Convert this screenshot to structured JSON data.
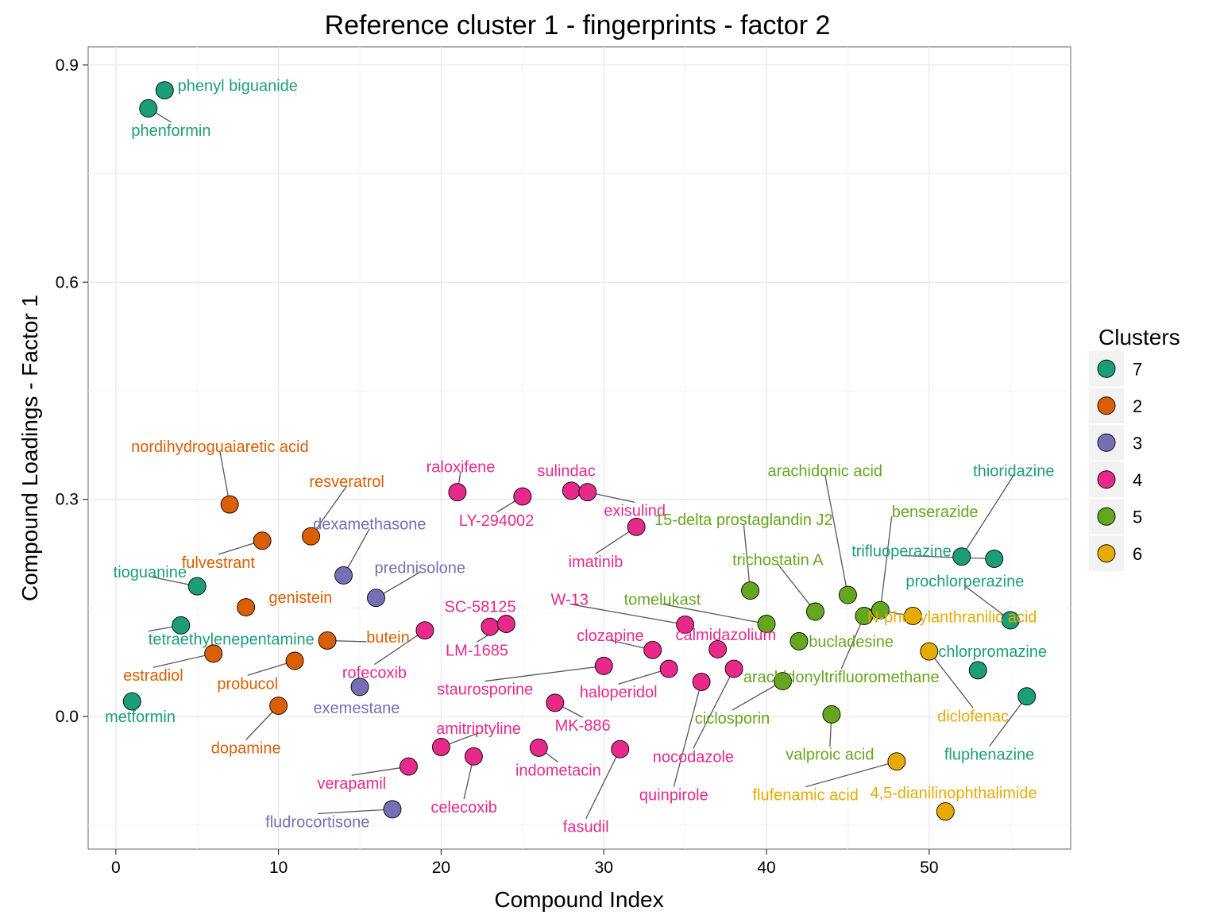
{
  "chart_data": {
    "type": "scatter",
    "title": "Reference cluster 1 - fingerprints - factor 2",
    "xlabel": "Compound Index",
    "ylabel": "Compound Loadings - Factor 1",
    "xlim": [
      -1.7,
      58.7
    ],
    "ylim": [
      -0.183,
      0.925
    ],
    "x_ticks": [
      0,
      10,
      20,
      30,
      40,
      50
    ],
    "y_ticks": [
      0.0,
      0.3,
      0.6,
      0.9
    ],
    "y_tick_labels": [
      "0.0",
      "0.3",
      "0.6",
      "0.9"
    ],
    "grid": true,
    "legend": {
      "title": "Clusters",
      "position": "right",
      "entries": [
        {
          "label": "7",
          "color": "#1b9e77"
        },
        {
          "label": "2",
          "color": "#d95f02"
        },
        {
          "label": "3",
          "color": "#7570b3"
        },
        {
          "label": "4",
          "color": "#e7298a"
        },
        {
          "label": "5",
          "color": "#66a61e"
        },
        {
          "label": "6",
          "color": "#e6ab02"
        }
      ]
    },
    "points": [
      {
        "x": 1,
        "y": 0.021,
        "label": "metformin",
        "cluster": "7",
        "lx": 1.5,
        "ly": 0.0,
        "la": "middle"
      },
      {
        "x": 2,
        "y": 0.84,
        "label": "phenformin",
        "cluster": "7",
        "lx": 3.4,
        "ly": 0.81,
        "la": "middle"
      },
      {
        "x": 3,
        "y": 0.865,
        "label": "phenyl biguanide",
        "cluster": "7",
        "lx": 3.8,
        "ly": 0.872,
        "la": "start"
      },
      {
        "x": 4,
        "y": 0.126,
        "label": "tetraethylenepentamine",
        "cluster": "7",
        "lx": 2.0,
        "ly": 0.107,
        "la": "start"
      },
      {
        "x": 5,
        "y": 0.18,
        "label": "tioguanine",
        "cluster": "7",
        "lx": 2.1,
        "ly": 0.2,
        "la": "middle"
      },
      {
        "x": 6,
        "y": 0.087,
        "label": "estradiol",
        "cluster": "2",
        "lx": 2.3,
        "ly": 0.057,
        "la": "middle"
      },
      {
        "x": 7,
        "y": 0.293,
        "label": "nordihydroguaiaretic acid",
        "cluster": "2",
        "lx": 6.4,
        "ly": 0.373,
        "la": "middle"
      },
      {
        "x": 8,
        "y": 0.151,
        "label": "genistein",
        "cluster": "2",
        "lx": 9.4,
        "ly": 0.165,
        "la": "start"
      },
      {
        "x": 9,
        "y": 0.243,
        "label": "fulvestrant",
        "cluster": "2",
        "lx": 6.3,
        "ly": 0.213,
        "la": "middle"
      },
      {
        "x": 10,
        "y": 0.015,
        "label": "dopamine",
        "cluster": "2",
        "lx": 8.0,
        "ly": -0.043,
        "la": "middle"
      },
      {
        "x": 11,
        "y": 0.077,
        "label": "probucol",
        "cluster": "2",
        "lx": 8.1,
        "ly": 0.046,
        "la": "middle"
      },
      {
        "x": 12,
        "y": 0.249,
        "label": "resveratrol",
        "cluster": "2",
        "lx": 14.2,
        "ly": 0.325,
        "la": "middle"
      },
      {
        "x": 13,
        "y": 0.105,
        "label": "butein",
        "cluster": "2",
        "lx": 15.4,
        "ly": 0.11,
        "la": "start"
      },
      {
        "x": 14,
        "y": 0.195,
        "label": "dexamethasone",
        "cluster": "3",
        "lx": 15.6,
        "ly": 0.266,
        "la": "middle"
      },
      {
        "x": 15,
        "y": 0.041,
        "label": "exemestane",
        "cluster": "3",
        "lx": 14.8,
        "ly": 0.012,
        "la": "middle"
      },
      {
        "x": 16,
        "y": 0.164,
        "label": "prednisolone",
        "cluster": "3",
        "lx": 18.7,
        "ly": 0.206,
        "la": "middle"
      },
      {
        "x": 17,
        "y": -0.128,
        "label": "fludrocortisone",
        "cluster": "3",
        "lx": 12.4,
        "ly": -0.145,
        "la": "middle"
      },
      {
        "x": 18,
        "y": -0.069,
        "label": "verapamil",
        "cluster": "4",
        "lx": 14.5,
        "ly": -0.092,
        "la": "middle"
      },
      {
        "x": 19,
        "y": 0.119,
        "label": "rofecoxib",
        "cluster": "4",
        "lx": 15.9,
        "ly": 0.061,
        "la": "middle"
      },
      {
        "x": 20,
        "y": -0.042,
        "label": "amitriptyline",
        "cluster": "4",
        "lx": 22.3,
        "ly": -0.016,
        "la": "middle"
      },
      {
        "x": 21,
        "y": 0.31,
        "label": "raloxifene",
        "cluster": "4",
        "lx": 21.2,
        "ly": 0.345,
        "la": "middle"
      },
      {
        "x": 22,
        "y": -0.055,
        "label": "celecoxib",
        "cluster": "4",
        "lx": 21.4,
        "ly": -0.125,
        "la": "middle"
      },
      {
        "x": 23,
        "y": 0.124,
        "label": "SC-58125",
        "cluster": "4",
        "lx": 22.4,
        "ly": 0.152,
        "la": "middle"
      },
      {
        "x": 24,
        "y": 0.128,
        "label": "LM-1685",
        "cluster": "4",
        "lx": 22.2,
        "ly": 0.092,
        "la": "middle"
      },
      {
        "x": 25,
        "y": 0.304,
        "label": "LY-294002",
        "cluster": "4",
        "lx": 23.4,
        "ly": 0.271,
        "la": "middle"
      },
      {
        "x": 26,
        "y": -0.043,
        "label": "indometacin",
        "cluster": "4",
        "lx": 27.2,
        "ly": -0.074,
        "la": "middle"
      },
      {
        "x": 27,
        "y": 0.019,
        "label": "MK-886",
        "cluster": "4",
        "lx": 28.7,
        "ly": -0.012,
        "la": "middle"
      },
      {
        "x": 28,
        "y": 0.312,
        "label": "sulindac",
        "cluster": "4",
        "lx": 27.7,
        "ly": 0.34,
        "la": "middle"
      },
      {
        "x": 29,
        "y": 0.31,
        "label": "exisulind",
        "cluster": "4",
        "lx": 31.9,
        "ly": 0.285,
        "la": "middle"
      },
      {
        "x": 30,
        "y": 0.07,
        "label": "staurosporine",
        "cluster": "4",
        "lx": 22.7,
        "ly": 0.038,
        "la": "middle"
      },
      {
        "x": 31,
        "y": -0.045,
        "label": "fasudil",
        "cluster": "4",
        "lx": 28.9,
        "ly": -0.152,
        "la": "middle"
      },
      {
        "x": 32,
        "y": 0.262,
        "label": "imatinib",
        "cluster": "4",
        "lx": 29.5,
        "ly": 0.214,
        "la": "middle"
      },
      {
        "x": 33,
        "y": 0.092,
        "label": "clozapine",
        "cluster": "4",
        "lx": 30.4,
        "ly": 0.112,
        "la": "middle"
      },
      {
        "x": 34,
        "y": 0.066,
        "label": "haloperidol",
        "cluster": "4",
        "lx": 30.9,
        "ly": 0.034,
        "la": "middle"
      },
      {
        "x": 35,
        "y": 0.127,
        "label": "W-13",
        "cluster": "4",
        "lx": 27.9,
        "ly": 0.162,
        "la": "middle"
      },
      {
        "x": 36,
        "y": 0.048,
        "label": "quinpirole",
        "cluster": "4",
        "lx": 34.3,
        "ly": -0.108,
        "la": "middle"
      },
      {
        "x": 37,
        "y": 0.093,
        "label": "calmidazolium",
        "cluster": "4",
        "lx": 37.5,
        "ly": 0.113,
        "la": "middle"
      },
      {
        "x": 38,
        "y": 0.066,
        "label": "nocodazole",
        "cluster": "4",
        "lx": 35.5,
        "ly": -0.055,
        "la": "middle"
      },
      {
        "x": 39,
        "y": 0.174,
        "label": "15-delta prostaglandin J2",
        "cluster": "5",
        "lx": 38.6,
        "ly": 0.272,
        "la": "middle"
      },
      {
        "x": 40,
        "y": 0.128,
        "label": "tomelukast",
        "cluster": "5",
        "lx": 33.6,
        "ly": 0.162,
        "la": "middle"
      },
      {
        "x": 41,
        "y": 0.049,
        "label": "ciclosporin",
        "cluster": "5",
        "lx": 37.9,
        "ly": -0.002,
        "la": "middle"
      },
      {
        "x": 42,
        "y": 0.104,
        "label": "bucladesine",
        "cluster": "5",
        "lx": 42.6,
        "ly": 0.104,
        "la": "start"
      },
      {
        "x": 43,
        "y": 0.145,
        "label": "trichostatin A",
        "cluster": "5",
        "lx": 40.7,
        "ly": 0.217,
        "la": "middle"
      },
      {
        "x": 44,
        "y": 0.003,
        "label": "valproic acid",
        "cluster": "5",
        "lx": 43.9,
        "ly": -0.052,
        "la": "middle"
      },
      {
        "x": 45,
        "y": 0.168,
        "label": "arachidonic acid",
        "cluster": "5",
        "lx": 43.6,
        "ly": 0.34,
        "la": "middle"
      },
      {
        "x": 46,
        "y": 0.139,
        "label": "arachidonyltrifluoromethane",
        "cluster": "5",
        "lx": 44.6,
        "ly": 0.055,
        "la": "middle"
      },
      {
        "x": 47,
        "y": 0.147,
        "label": "benserazide",
        "cluster": "5",
        "lx": 47.7,
        "ly": 0.283,
        "la": "start"
      },
      {
        "x": 48,
        "y": -0.062,
        "label": "flufenamic acid",
        "cluster": "6",
        "lx": 42.4,
        "ly": -0.108,
        "la": "middle"
      },
      {
        "x": 49,
        "y": 0.139,
        "label": "N-phenylanthranilic acid",
        "cluster": "6",
        "lx": 46.2,
        "ly": 0.138,
        "la": "start"
      },
      {
        "x": 50,
        "y": 0.09,
        "label": "diclofenac",
        "cluster": "6",
        "lx": 52.7,
        "ly": 0.001,
        "la": "middle"
      },
      {
        "x": 51,
        "y": -0.131,
        "label": "4,5-dianilinophthalimide",
        "cluster": "6",
        "lx": 51.5,
        "ly": -0.105,
        "la": "middle"
      },
      {
        "x": 52,
        "y": 0.221,
        "label": "thioridazine",
        "cluster": "7",
        "lx": 55.2,
        "ly": 0.34,
        "la": "middle"
      },
      {
        "x": 53,
        "y": 0.064,
        "label": "chlorpromazine",
        "cluster": "7",
        "lx": 53.9,
        "ly": 0.09,
        "la": "middle"
      },
      {
        "x": 54,
        "y": 0.218,
        "label": "trifluoperazine",
        "cluster": "7",
        "lx": 48.3,
        "ly": 0.229,
        "la": "middle"
      },
      {
        "x": 55,
        "y": 0.133,
        "label": "prochlorperazine",
        "cluster": "7",
        "lx": 52.2,
        "ly": 0.187,
        "la": "middle"
      },
      {
        "x": 56,
        "y": 0.028,
        "label": "fluphenazine",
        "cluster": "7",
        "lx": 53.7,
        "ly": -0.052,
        "la": "middle"
      }
    ]
  }
}
